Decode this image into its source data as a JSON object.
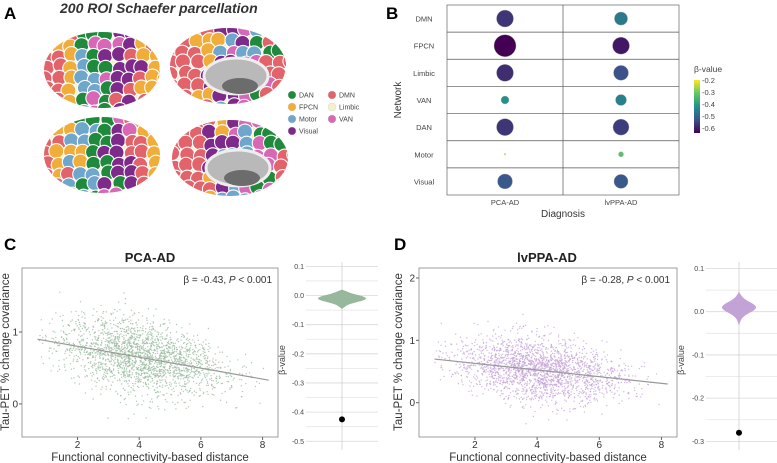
{
  "panels": {
    "a": "A",
    "b": "B",
    "c": "C",
    "d": "D"
  },
  "parcellation": {
    "title": "200 ROI Schaefer parcellation",
    "legend": [
      {
        "label": "DAN",
        "color": "#1f8a3c"
      },
      {
        "label": "FPCN",
        "color": "#f0ad3a"
      },
      {
        "label": "Motor",
        "color": "#6fa7cc"
      },
      {
        "label": "Visual",
        "color": "#7d2a8a"
      },
      {
        "label": "DMN",
        "color": "#e3636b"
      },
      {
        "label": "Limbic",
        "color": "#f3f1c9"
      },
      {
        "label": "VAN",
        "color": "#d867b6"
      }
    ]
  },
  "chart_data": [
    {
      "type": "bubble",
      "xlabel": "Diagnosis",
      "ylabel": "Network",
      "x_categories": [
        "PCA-AD",
        "lvPPA-AD"
      ],
      "y_categories": [
        "DMN",
        "FPCN",
        "Limbic",
        "VAN",
        "DAN",
        "Motor",
        "Visual"
      ],
      "beta": {
        "PCA-AD": [
          -0.57,
          -0.64,
          -0.58,
          -0.42,
          -0.57,
          -0.2,
          -0.52
        ],
        "lvPPA-AD": [
          -0.46,
          -0.61,
          -0.53,
          -0.45,
          -0.56,
          -0.32,
          -0.52
        ]
      },
      "relative_size": {
        "PCA-AD": [
          0.77,
          1.0,
          0.77,
          0.36,
          0.77,
          0.05,
          0.68
        ],
        "lvPPA-AD": [
          0.6,
          0.77,
          0.68,
          0.5,
          0.73,
          0.23,
          0.64
        ]
      },
      "colorbar": {
        "title": "β-value",
        "ticks": [
          "-0.2",
          "-0.3",
          "-0.4",
          "-0.5",
          "-0.6"
        ],
        "range": [
          -0.64,
          -0.2
        ],
        "colormap": "viridis"
      }
    },
    {
      "type": "scatter",
      "title": "PCA-AD",
      "xlabel": "Functional connectivity-based distance",
      "ylabel": "Tau-PET % change covariance",
      "xticks": [
        "2",
        "4",
        "6",
        "8"
      ],
      "yticks": [
        "0",
        "1"
      ],
      "xlim": [
        0.2,
        8.5
      ],
      "ylim": [
        -0.46,
        1.89
      ],
      "annotation": {
        "beta": "β = -0.43, ",
        "p": "P",
        "rest": " < 0.001"
      },
      "regression": {
        "x": [
          0.7,
          8.2
        ],
        "y": [
          0.9,
          0.33
        ]
      },
      "point_color": "#97b89c"
    },
    {
      "type": "violin",
      "ylabel": "β-value",
      "yticks": [
        "0.1",
        "0.0",
        "-0.1",
        "-0.2",
        "-0.3",
        "-0.4",
        "-0.5"
      ],
      "ylim": [
        -0.53,
        0.115
      ],
      "null_distribution": {
        "mean": -0.01,
        "sd": 0.012,
        "min": -0.045,
        "max": 0.02
      },
      "observed": -0.425,
      "color": "#97b89c"
    },
    {
      "type": "scatter",
      "title": "lvPPA-AD",
      "xlabel": "Functional connectivity-based distance",
      "ylabel": "Tau-PET % change covariance",
      "xticks": [
        "2",
        "4",
        "6",
        "8"
      ],
      "yticks": [
        "0",
        "1",
        "2"
      ],
      "xlim": [
        0.2,
        8.5
      ],
      "ylim": [
        -0.55,
        2.16
      ],
      "annotation": {
        "beta": "β = -0.28, ",
        "p": "P",
        "rest": " < 0.001"
      },
      "regression": {
        "x": [
          0.7,
          8.2
        ],
        "y": [
          0.7,
          0.3
        ]
      },
      "point_color": "#c3a2d6"
    },
    {
      "type": "violin",
      "ylabel": "β-value",
      "yticks": [
        "0.1",
        "0.0",
        "-0.1",
        "-0.2",
        "-0.3"
      ],
      "ylim": [
        -0.32,
        0.115
      ],
      "null_distribution": {
        "mean": 0.01,
        "sd": 0.012,
        "min": -0.03,
        "max": 0.045
      },
      "observed": -0.28,
      "color": "#c3a2d6"
    }
  ]
}
